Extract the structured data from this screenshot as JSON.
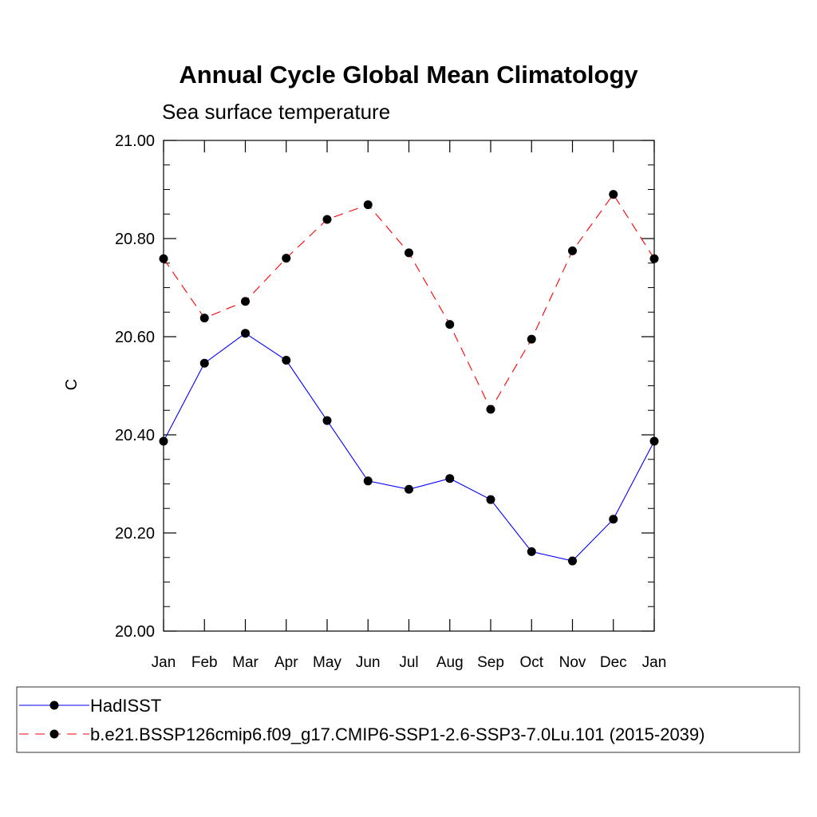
{
  "chart_data": {
    "type": "line",
    "title": "Annual Cycle Global Mean Climatology",
    "subtitle": "Sea surface temperature",
    "ylabel": "C",
    "xlabel": "",
    "categories": [
      "Jan",
      "Feb",
      "Mar",
      "Apr",
      "May",
      "Jun",
      "Jul",
      "Aug",
      "Sep",
      "Oct",
      "Nov",
      "Dec",
      "Jan"
    ],
    "ylim": [
      20.0,
      21.0
    ],
    "yticks": [
      "20.00",
      "20.20",
      "20.40",
      "20.60",
      "20.80",
      "21.00"
    ],
    "ytick_values": [
      20.0,
      20.2,
      20.4,
      20.6,
      20.8,
      21.0
    ],
    "grid": false,
    "legend_placement": "bottom",
    "series": [
      {
        "name": "HadISST",
        "color": "#0000ff",
        "line_style": "solid",
        "marker": "filled-circle",
        "values": [
          20.387,
          20.546,
          20.607,
          20.552,
          20.429,
          20.306,
          20.289,
          20.311,
          20.268,
          20.162,
          20.143,
          20.228,
          20.387
        ]
      },
      {
        "name": "b.e21.BSSP126cmip6.f09_g17.CMIP6-SSP1-2.6-SSP3-7.0Lu.101 (2015-2039)",
        "color": "#ff0000",
        "line_style": "dashed",
        "marker": "filled-circle",
        "values": [
          20.759,
          20.638,
          20.672,
          20.76,
          20.839,
          20.869,
          20.771,
          20.625,
          20.452,
          20.595,
          20.775,
          20.89,
          20.759
        ]
      }
    ]
  }
}
